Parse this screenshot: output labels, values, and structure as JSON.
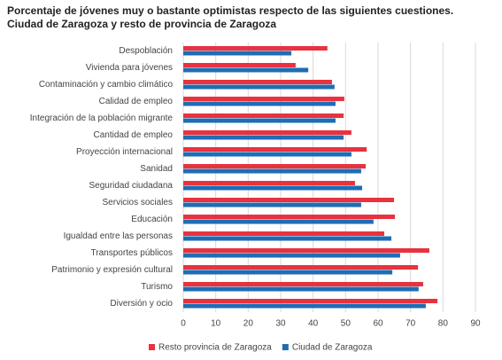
{
  "chart_data": {
    "type": "barh",
    "title": "Porcentaje de jóvenes muy o bastante optimistas respecto de las siguientes cuestiones.",
    "subtitle": "Ciudad de Zaragoza y resto de provincia de Zaragoza",
    "categories": [
      "Despoblación",
      "Vivienda para jóvenes",
      "Contaminación y cambio climático",
      "Calidad de empleo",
      "Integración de la población migrante",
      "Cantidad de empleo",
      "Proyección internacional",
      "Sanidad",
      "Seguridad ciudadana",
      "Servicios sociales",
      "Educación",
      "Igualdad entre las personas",
      "Transportes públicos",
      "Patrimonio y expresión cultural",
      "Turismo",
      "Diversión y ocio"
    ],
    "series": [
      {
        "name": "Resto provincia de Zaragoza",
        "color": "#e8323f",
        "values": [
          44.4,
          34.6,
          45.8,
          49.6,
          49.4,
          51.8,
          56.5,
          56.2,
          52.9,
          64.9,
          65.2,
          61.9,
          75.8,
          72.3,
          73.9,
          78.3
        ]
      },
      {
        "name": "Ciudad de Zaragoza",
        "color": "#1f6db3",
        "values": [
          33.3,
          38.5,
          46.6,
          46.9,
          46.9,
          49.4,
          51.8,
          54.8,
          55.1,
          54.8,
          58.6,
          64.1,
          66.8,
          64.4,
          72.5,
          74.7
        ]
      }
    ],
    "xlim": [
      0,
      90
    ],
    "xticks": [
      0,
      10,
      20,
      30,
      40,
      50,
      60,
      70,
      80,
      90
    ],
    "grid": true
  }
}
